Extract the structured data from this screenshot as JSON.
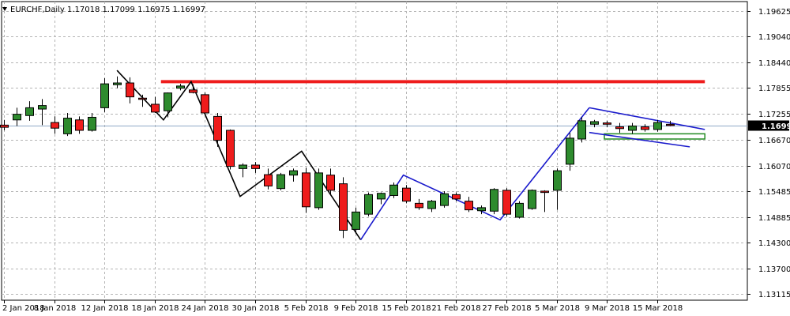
{
  "header": {
    "symbol_line": "EURCHF,Daily  1.17018 1.17099 1.16975 1.16997"
  },
  "colors": {
    "bull": "#2e8b2e",
    "bear": "#ee1c1c",
    "wick": "#000000",
    "resistance": "#ee1c1c",
    "zigzag_black": "#000000",
    "zigzag_blue": "#1a1acc",
    "support_band": "#228b22",
    "current_line": "#8fa8c8",
    "grid": "#b4b4b4",
    "current_label_bg": "#000000"
  },
  "chart_data": {
    "type": "candlestick",
    "title": "EURCHF,Daily",
    "last": {
      "open": "1.17018",
      "high": "1.17099",
      "low": "1.16975",
      "close": "1.16997"
    },
    "current_price_label": "1.16997",
    "y_ticks": [
      "1.19625",
      "1.19040",
      "1.18440",
      "1.17855",
      "1.17255",
      "1.16670",
      "1.16070",
      "1.15485",
      "1.14885",
      "1.14300",
      "1.13700",
      "1.13115"
    ],
    "x_ticks": [
      {
        "label": "2 Jan 2018",
        "i": 0
      },
      {
        "label": "8 Jan 2018",
        "i": 4
      },
      {
        "label": "12 Jan 2018",
        "i": 8
      },
      {
        "label": "18 Jan 2018",
        "i": 12
      },
      {
        "label": "24 Jan 2018",
        "i": 16
      },
      {
        "label": "30 Jan 2018",
        "i": 20
      },
      {
        "label": "5 Feb 2018",
        "i": 24
      },
      {
        "label": "9 Feb 2018",
        "i": 28
      },
      {
        "label": "15 Feb 2018",
        "i": 32
      },
      {
        "label": "21 Feb 2018",
        "i": 36
      },
      {
        "label": "27 Feb 2018",
        "i": 40
      },
      {
        "label": "5 Mar 2018",
        "i": 44
      },
      {
        "label": "9 Mar 2018",
        "i": 48
      },
      {
        "label": "15 Mar 2018",
        "i": 52
      }
    ],
    "candles": [
      {
        "o": 1.17,
        "h": 1.1712,
        "l": 1.1688,
        "c": 1.1695
      },
      {
        "o": 1.1712,
        "h": 1.174,
        "l": 1.1698,
        "c": 1.1725
      },
      {
        "o": 1.1722,
        "h": 1.1755,
        "l": 1.171,
        "c": 1.174
      },
      {
        "o": 1.1737,
        "h": 1.176,
        "l": 1.17,
        "c": 1.1745
      },
      {
        "o": 1.1706,
        "h": 1.172,
        "l": 1.168,
        "c": 1.1693
      },
      {
        "o": 1.168,
        "h": 1.1728,
        "l": 1.1675,
        "c": 1.1716
      },
      {
        "o": 1.1712,
        "h": 1.172,
        "l": 1.168,
        "c": 1.1688
      },
      {
        "o": 1.1688,
        "h": 1.1728,
        "l": 1.1685,
        "c": 1.1718
      },
      {
        "o": 1.174,
        "h": 1.1808,
        "l": 1.173,
        "c": 1.1795
      },
      {
        "o": 1.1793,
        "h": 1.1812,
        "l": 1.1785,
        "c": 1.1797
      },
      {
        "o": 1.1797,
        "h": 1.181,
        "l": 1.175,
        "c": 1.1765
      },
      {
        "o": 1.1762,
        "h": 1.177,
        "l": 1.1742,
        "c": 1.176
      },
      {
        "o": 1.1748,
        "h": 1.1765,
        "l": 1.1728,
        "c": 1.173
      },
      {
        "o": 1.1733,
        "h": 1.1775,
        "l": 1.1718,
        "c": 1.1774
      },
      {
        "o": 1.1785,
        "h": 1.1795,
        "l": 1.178,
        "c": 1.179
      },
      {
        "o": 1.1781,
        "h": 1.1794,
        "l": 1.1773,
        "c": 1.1775
      },
      {
        "o": 1.177,
        "h": 1.1775,
        "l": 1.1725,
        "c": 1.1728
      },
      {
        "o": 1.172,
        "h": 1.1728,
        "l": 1.165,
        "c": 1.1665
      },
      {
        "o": 1.1688,
        "h": 1.169,
        "l": 1.1598,
        "c": 1.1605
      },
      {
        "o": 1.16,
        "h": 1.1612,
        "l": 1.158,
        "c": 1.1608
      },
      {
        "o": 1.1608,
        "h": 1.1615,
        "l": 1.159,
        "c": 1.16
      },
      {
        "o": 1.1586,
        "h": 1.16,
        "l": 1.1552,
        "c": 1.156
      },
      {
        "o": 1.1554,
        "h": 1.159,
        "l": 1.155,
        "c": 1.1586
      },
      {
        "o": 1.1585,
        "h": 1.16,
        "l": 1.157,
        "c": 1.1595
      },
      {
        "o": 1.159,
        "h": 1.1602,
        "l": 1.1498,
        "c": 1.1512
      },
      {
        "o": 1.151,
        "h": 1.16,
        "l": 1.1505,
        "c": 1.159
      },
      {
        "o": 1.1585,
        "h": 1.16,
        "l": 1.154,
        "c": 1.155
      },
      {
        "o": 1.1565,
        "h": 1.158,
        "l": 1.144,
        "c": 1.1458
      },
      {
        "o": 1.146,
        "h": 1.151,
        "l": 1.145,
        "c": 1.15
      },
      {
        "o": 1.1495,
        "h": 1.1545,
        "l": 1.149,
        "c": 1.154
      },
      {
        "o": 1.153,
        "h": 1.1545,
        "l": 1.1518,
        "c": 1.1543
      },
      {
        "o": 1.1538,
        "h": 1.1568,
        "l": 1.1532,
        "c": 1.1562
      },
      {
        "o": 1.1555,
        "h": 1.1562,
        "l": 1.152,
        "c": 1.1525
      },
      {
        "o": 1.152,
        "h": 1.153,
        "l": 1.1505,
        "c": 1.151
      },
      {
        "o": 1.1508,
        "h": 1.1528,
        "l": 1.15,
        "c": 1.1525
      },
      {
        "o": 1.1515,
        "h": 1.1548,
        "l": 1.151,
        "c": 1.1542
      },
      {
        "o": 1.154,
        "h": 1.1545,
        "l": 1.1525,
        "c": 1.153
      },
      {
        "o": 1.1525,
        "h": 1.1535,
        "l": 1.15,
        "c": 1.1505
      },
      {
        "o": 1.1503,
        "h": 1.1515,
        "l": 1.1495,
        "c": 1.151
      },
      {
        "o": 1.1502,
        "h": 1.1555,
        "l": 1.1495,
        "c": 1.1552
      },
      {
        "o": 1.155,
        "h": 1.1555,
        "l": 1.149,
        "c": 1.1495
      },
      {
        "o": 1.1488,
        "h": 1.1525,
        "l": 1.1485,
        "c": 1.152
      },
      {
        "o": 1.1508,
        "h": 1.1552,
        "l": 1.1505,
        "c": 1.155
      },
      {
        "o": 1.1548,
        "h": 1.155,
        "l": 1.15,
        "c": 1.1545
      },
      {
        "o": 1.155,
        "h": 1.16,
        "l": 1.1505,
        "c": 1.1595
      },
      {
        "o": 1.161,
        "h": 1.1682,
        "l": 1.1595,
        "c": 1.167
      },
      {
        "o": 1.1668,
        "h": 1.1718,
        "l": 1.166,
        "c": 1.171
      },
      {
        "o": 1.1702,
        "h": 1.1712,
        "l": 1.1695,
        "c": 1.1708
      },
      {
        "o": 1.1705,
        "h": 1.171,
        "l": 1.1695,
        "c": 1.1702
      },
      {
        "o": 1.1696,
        "h": 1.1705,
        "l": 1.1682,
        "c": 1.1692
      },
      {
        "o": 1.1688,
        "h": 1.1705,
        "l": 1.168,
        "c": 1.1698
      },
      {
        "o": 1.1696,
        "h": 1.1702,
        "l": 1.1685,
        "c": 1.169
      },
      {
        "o": 1.169,
        "h": 1.1712,
        "l": 1.1685,
        "c": 1.1706
      },
      {
        "o": 1.17018,
        "h": 1.17099,
        "l": 1.16975,
        "c": 1.16997
      }
    ],
    "annotations": {
      "resistance": {
        "price": 1.18,
        "from_i": 12.5,
        "to_i": 55.8
      },
      "support_band": {
        "from_price": 1.1668,
        "to_price": 1.168,
        "from_i": 47.8,
        "to_i": 55.8
      },
      "zigzag_black": [
        {
          "i": 9,
          "p": 1.1826
        },
        {
          "i": 12.7,
          "p": 1.1712
        },
        {
          "i": 14.9,
          "p": 1.18
        },
        {
          "i": 18.8,
          "p": 1.1536
        },
        {
          "i": 23.7,
          "p": 1.164
        },
        {
          "i": 28.4,
          "p": 1.1436
        }
      ],
      "zigzag_blue": [
        {
          "i": 28.4,
          "p": 1.1436
        },
        {
          "i": 31.8,
          "p": 1.1585
        },
        {
          "i": 39.5,
          "p": 1.1482
        },
        {
          "i": 46.6,
          "p": 1.174
        }
      ],
      "wedge_upper": {
        "from_i": 46.6,
        "from_p": 1.174,
        "to_i": 55.8,
        "to_p": 1.169
      },
      "wedge_lower": {
        "from_i": 46.6,
        "from_p": 1.1683,
        "to_i": 54.6,
        "to_p": 1.165
      }
    }
  }
}
